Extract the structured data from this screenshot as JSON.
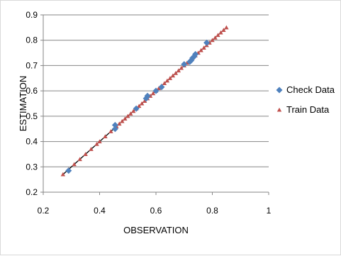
{
  "chart_data": {
    "type": "scatter",
    "xlabel": "OBSERVATION",
    "ylabel": "ESTIMATION",
    "xlim": [
      0.2,
      1.0
    ],
    "ylim": [
      0.2,
      0.9
    ],
    "x_ticks": [
      "0.2",
      "0.4",
      "0.6",
      "0.8",
      "1"
    ],
    "y_ticks": [
      "0.2",
      "0.3",
      "0.4",
      "0.5",
      "0.6",
      "0.7",
      "0.8",
      "0.9"
    ],
    "grid": "horizontal",
    "legend_position": "right",
    "series": [
      {
        "name": "Check Data",
        "marker": "diamond",
        "color": "#4f81bd",
        "points": [
          [
            0.29,
            0.285
          ],
          [
            0.455,
            0.465
          ],
          [
            0.455,
            0.45
          ],
          [
            0.53,
            0.53
          ],
          [
            0.565,
            0.57
          ],
          [
            0.57,
            0.58
          ],
          [
            0.6,
            0.6
          ],
          [
            0.62,
            0.615
          ],
          [
            0.7,
            0.705
          ],
          [
            0.72,
            0.715
          ],
          [
            0.725,
            0.72
          ],
          [
            0.73,
            0.73
          ],
          [
            0.735,
            0.735
          ],
          [
            0.74,
            0.745
          ],
          [
            0.78,
            0.79
          ]
        ]
      },
      {
        "name": "Train Data",
        "marker": "triangle",
        "color": "#c0504d",
        "points": [
          [
            0.27,
            0.27
          ],
          [
            0.29,
            0.29
          ],
          [
            0.31,
            0.31
          ],
          [
            0.33,
            0.33
          ],
          [
            0.35,
            0.35
          ],
          [
            0.37,
            0.37
          ],
          [
            0.39,
            0.39
          ],
          [
            0.4,
            0.4
          ],
          [
            0.42,
            0.42
          ],
          [
            0.44,
            0.44
          ],
          [
            0.46,
            0.46
          ],
          [
            0.47,
            0.47
          ],
          [
            0.48,
            0.48
          ],
          [
            0.49,
            0.49
          ],
          [
            0.5,
            0.5
          ],
          [
            0.51,
            0.51
          ],
          [
            0.52,
            0.52
          ],
          [
            0.53,
            0.53
          ],
          [
            0.54,
            0.54
          ],
          [
            0.55,
            0.55
          ],
          [
            0.56,
            0.56
          ],
          [
            0.57,
            0.57
          ],
          [
            0.58,
            0.58
          ],
          [
            0.59,
            0.59
          ],
          [
            0.6,
            0.6
          ],
          [
            0.61,
            0.61
          ],
          [
            0.62,
            0.62
          ],
          [
            0.63,
            0.63
          ],
          [
            0.64,
            0.64
          ],
          [
            0.65,
            0.65
          ],
          [
            0.66,
            0.66
          ],
          [
            0.67,
            0.67
          ],
          [
            0.68,
            0.68
          ],
          [
            0.69,
            0.69
          ],
          [
            0.7,
            0.7
          ],
          [
            0.71,
            0.71
          ],
          [
            0.72,
            0.72
          ],
          [
            0.73,
            0.73
          ],
          [
            0.74,
            0.74
          ],
          [
            0.75,
            0.75
          ],
          [
            0.76,
            0.76
          ],
          [
            0.77,
            0.77
          ],
          [
            0.78,
            0.78
          ],
          [
            0.79,
            0.79
          ],
          [
            0.8,
            0.8
          ],
          [
            0.81,
            0.81
          ],
          [
            0.82,
            0.82
          ],
          [
            0.83,
            0.83
          ],
          [
            0.84,
            0.84
          ],
          [
            0.85,
            0.85
          ]
        ]
      }
    ],
    "axis_color": "#868686",
    "grid_color": "#868686",
    "trend_line": {
      "color": "#000000",
      "x": [
        0.27,
        0.85
      ]
    }
  }
}
